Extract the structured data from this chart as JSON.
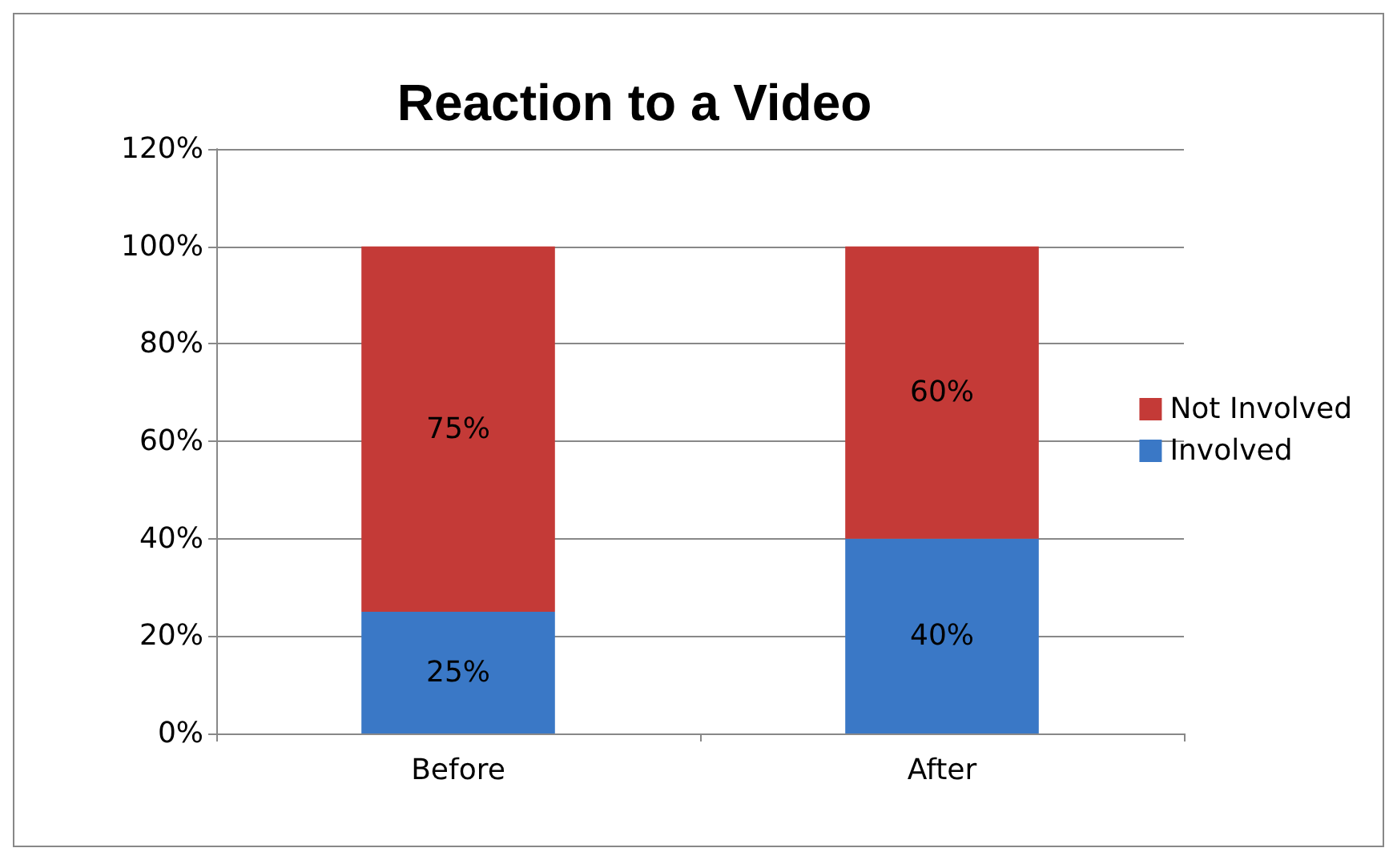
{
  "chart_data": {
    "type": "bar",
    "title": "Reaction to a Video",
    "categories": [
      "Before",
      "After"
    ],
    "stacked": true,
    "series": [
      {
        "name": "Involved",
        "color": "#3a78c6",
        "values": [
          25,
          40
        ],
        "value_labels": [
          "25%",
          "40%"
        ]
      },
      {
        "name": "Not Involved",
        "color": "#c43a37",
        "values": [
          75,
          60
        ],
        "value_labels": [
          "75%",
          "60%"
        ]
      }
    ],
    "ylim": [
      0,
      120
    ],
    "yticks": [
      {
        "value": 0,
        "label": "0%"
      },
      {
        "value": 20,
        "label": "20%"
      },
      {
        "value": 40,
        "label": "40%"
      },
      {
        "value": 60,
        "label": "60%"
      },
      {
        "value": 80,
        "label": "80%"
      },
      {
        "value": 100,
        "label": "100%"
      },
      {
        "value": 120,
        "label": "120%"
      }
    ],
    "grid": "y",
    "legend": "right"
  }
}
